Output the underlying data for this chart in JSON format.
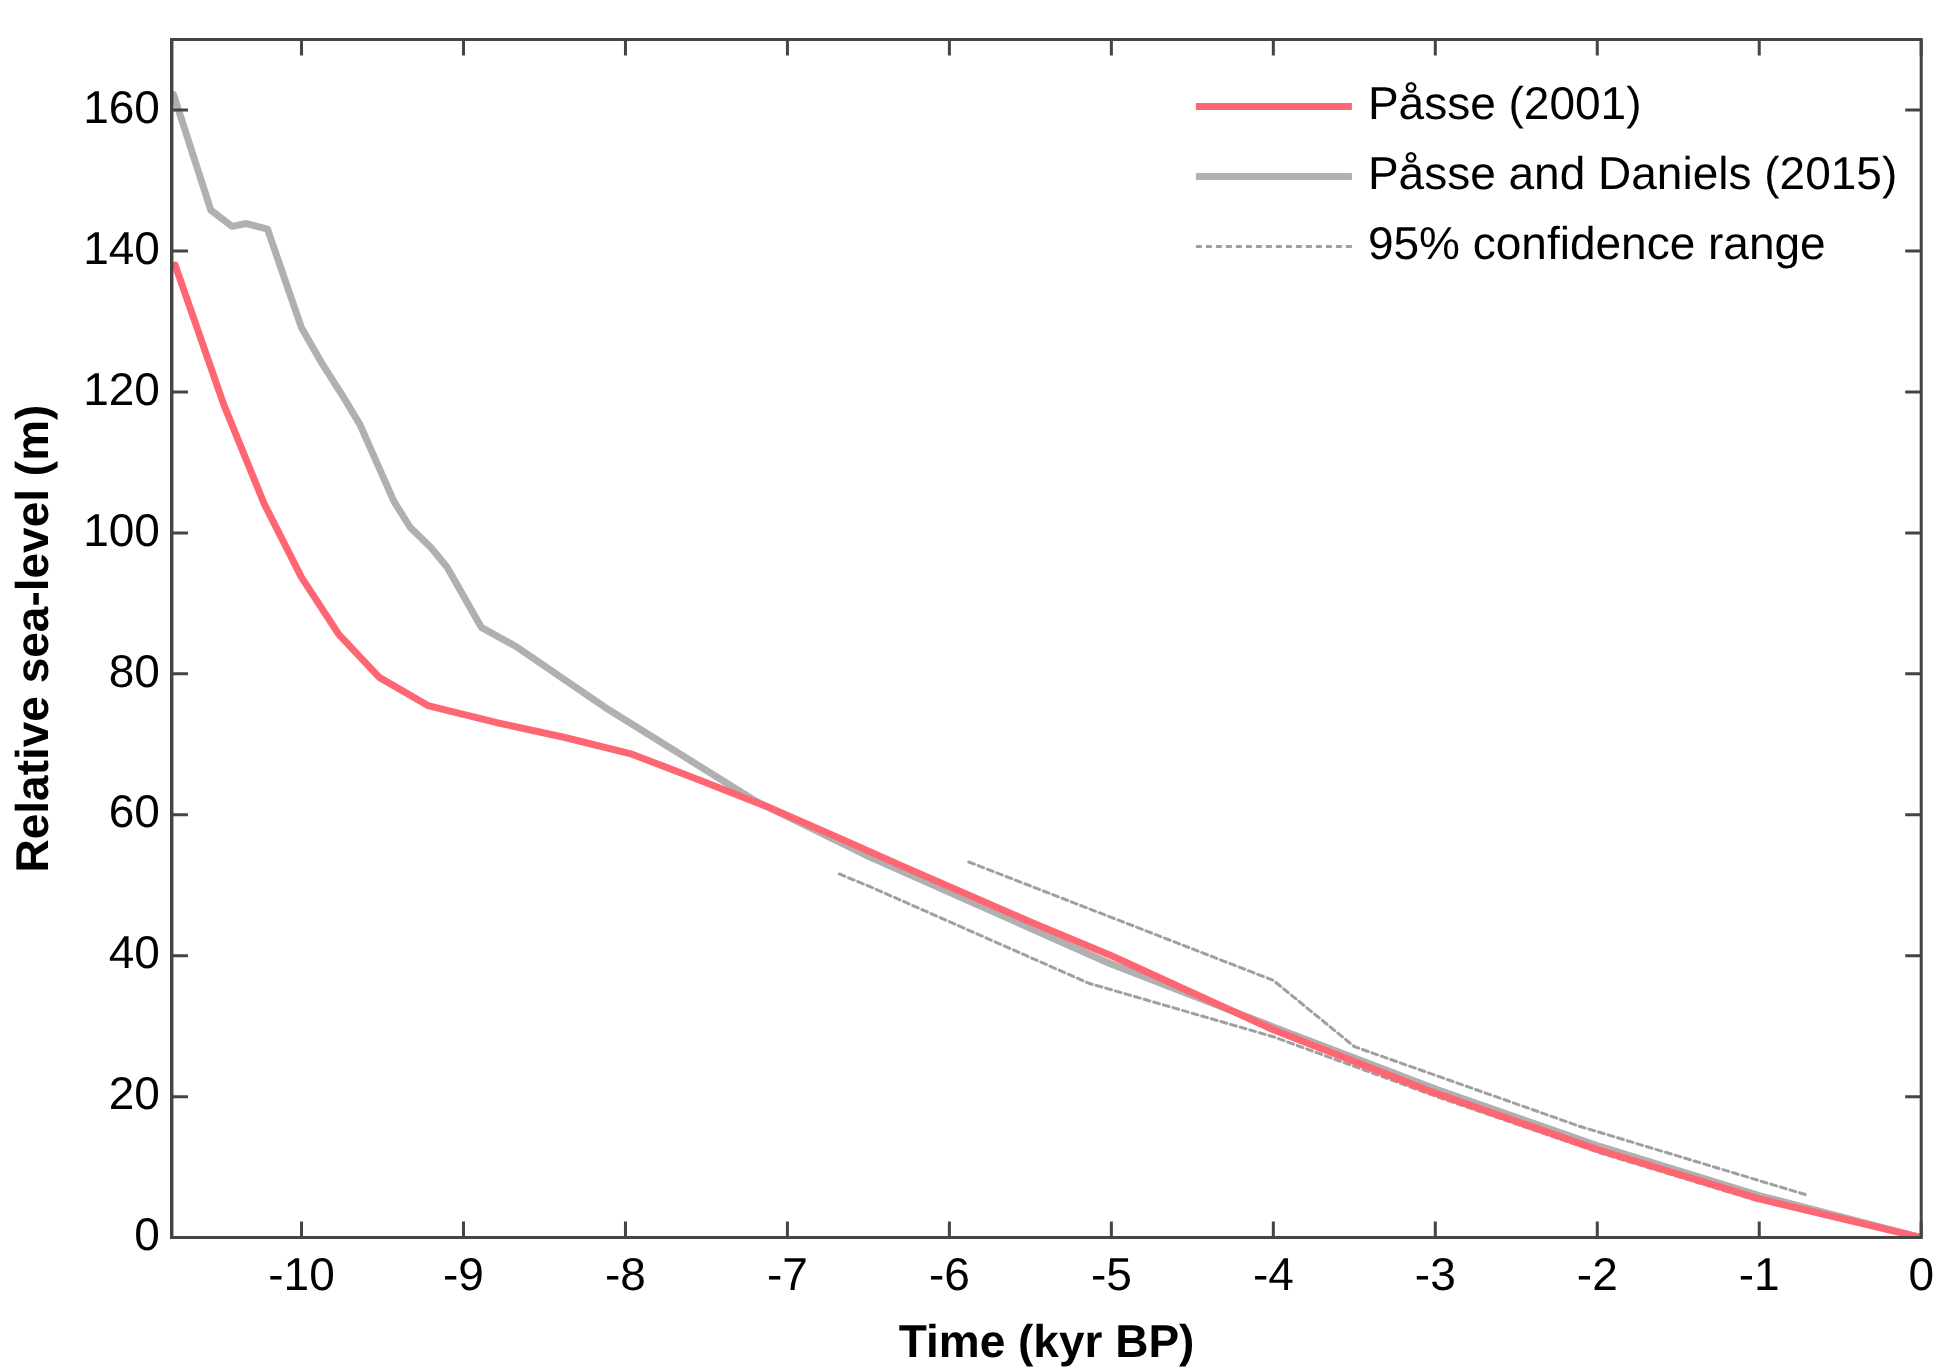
{
  "chart_data": {
    "type": "line",
    "xlabel": "Time (kyr BP)",
    "ylabel": "Relative sea-level (m)",
    "xlim": [
      -10.8,
      0
    ],
    "xticks": [
      -10,
      -9,
      -8,
      -7,
      -6,
      -5,
      -4,
      -3,
      -2,
      -1,
      0
    ],
    "ylim": [
      0,
      170
    ],
    "yticks": [
      0,
      20,
      40,
      60,
      80,
      100,
      120,
      140,
      160
    ],
    "grid": false,
    "legend": "top right",
    "marker": "none",
    "series": [
      {
        "name": "Påsse (2001)",
        "color": "#ff6673",
        "line_style": "solid",
        "x": [
          -10.78,
          -10.48,
          -10.23,
          -10.0,
          -9.77,
          -9.52,
          -9.22,
          -8.8,
          -8.38,
          -7.96,
          -7.54,
          -7.12,
          -6.7,
          -6.28,
          -5.5,
          -5.0,
          -4.0,
          -3.0,
          -2.0,
          -1.0,
          0
        ],
        "values": [
          138,
          118.2,
          104.1,
          93.7,
          85.6,
          79.5,
          75.5,
          73.1,
          71.0,
          68.6,
          64.9,
          61.1,
          56.9,
          52.6,
          44.8,
          40,
          29.5,
          20.5,
          12.5,
          5.5,
          0
        ]
      },
      {
        "name": "Påsse and Daniels (2015)",
        "color": "#b0b0b0",
        "line_style": "solid",
        "x": [
          -10.79,
          -10.56,
          -10.43,
          -10.34,
          -10.21,
          -10.0,
          -9.87,
          -9.75,
          -9.64,
          -9.43,
          -9.33,
          -9.2,
          -9.1,
          -8.89,
          -8.67,
          -8.13,
          -7.2,
          -6.49,
          -5.01,
          -4.0,
          -2.99,
          -1.98,
          -0.99,
          0
        ],
        "values": [
          162.2,
          145.8,
          143.5,
          143.9,
          143.1,
          129.1,
          123.9,
          119.6,
          115.4,
          104.5,
          100.8,
          97.9,
          95.1,
          86.6,
          83.8,
          75.3,
          62.0,
          54.0,
          38.9,
          29.9,
          21.0,
          12.9,
          5.9,
          0
        ]
      },
      {
        "name": "95% confidence range",
        "color": "#a0a0a0",
        "line_style": "dotted",
        "x": [
          -5.88,
          -4.0,
          -3.5,
          -2.11,
          -0.7
        ],
        "values": [
          53.3,
          36.5,
          27.1,
          15.8,
          6.0
        ]
      },
      {
        "color": "#a0a0a0",
        "line_style": "dotted",
        "x": [
          -6.68,
          -6.49,
          -5.14,
          -4.0,
          -2.99,
          -1.98,
          -0.99
        ],
        "values": [
          51.6,
          49.8,
          36.1,
          28.5,
          20.0,
          12.0,
          5.1
        ]
      }
    ]
  }
}
